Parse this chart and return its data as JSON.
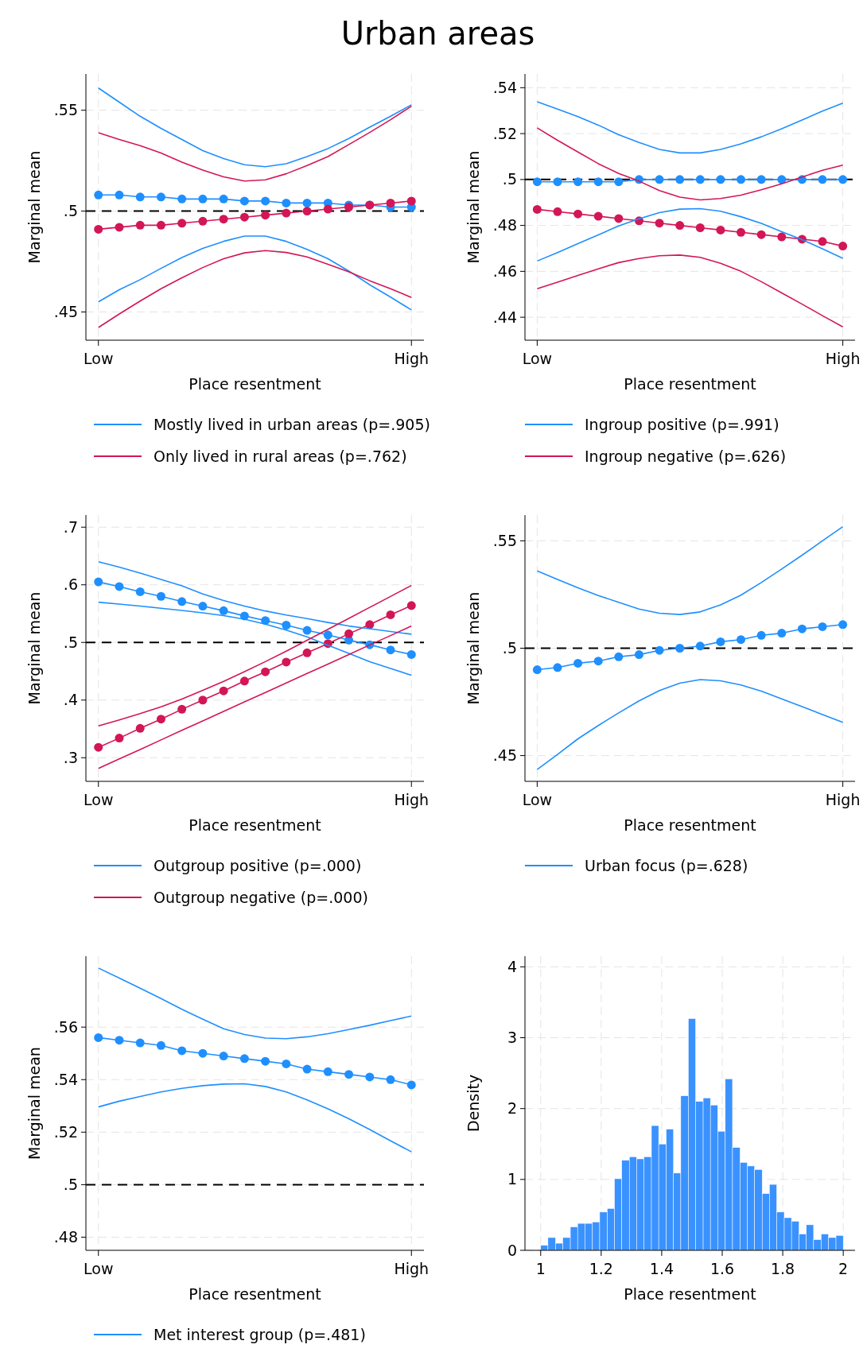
{
  "chart_data": [
    {
      "type": "line",
      "title": "Urban areas",
      "xlabel": "Place resentment",
      "ylabel": "Marginal mean",
      "categories": [
        "Low",
        null,
        null,
        null,
        null,
        null,
        null,
        null,
        null,
        null,
        null,
        null,
        null,
        null,
        null,
        "High"
      ],
      "ylim": [
        0.436,
        0.568
      ],
      "yticks": [
        {
          "value": 0.45,
          "label": ".45"
        },
        {
          "value": 0.5,
          "label": ".5"
        },
        {
          "value": 0.55,
          "label": ".55"
        }
      ],
      "grid": true,
      "legend": "bottom",
      "marker": "circle",
      "ref_lines": [
        {
          "axis": "y",
          "value": 0.5,
          "color": "#000000",
          "line_style": "dashed"
        }
      ],
      "series": [
        {
          "name": "Mostly lived in urban areas (p=.905)",
          "color": "#1e8fff",
          "values": [
            0.508,
            0.508,
            0.507,
            0.507,
            0.506,
            0.506,
            0.506,
            0.505,
            0.505,
            0.504,
            0.504,
            0.504,
            0.503,
            0.503,
            0.502,
            0.502
          ]
        },
        {
          "name": "Only lived in rural areas (p=.762)",
          "color": "#d31655",
          "values": [
            0.491,
            0.492,
            0.493,
            0.493,
            0.494,
            0.495,
            0.496,
            0.497,
            0.498,
            0.499,
            0.5,
            0.501,
            0.502,
            0.503,
            0.504,
            0.505
          ]
        },
        {
          "color": "#1e8fff",
          "marker": "none",
          "values": [
            0.455,
            0.461,
            0.466,
            0.4716,
            0.477,
            0.4815,
            0.485,
            0.4876,
            0.4876,
            0.485,
            0.481,
            0.4764,
            0.4703,
            0.4635,
            0.4574,
            0.451
          ]
        },
        {
          "color": "#1e8fff",
          "marker": "none",
          "values": [
            0.561,
            0.554,
            0.547,
            0.541,
            0.5355,
            0.53,
            0.526,
            0.523,
            0.522,
            0.5235,
            0.527,
            0.531,
            0.536,
            0.5416,
            0.547,
            0.5527
          ]
        },
        {
          "color": "#d31655",
          "marker": "none",
          "values": [
            0.4423,
            0.449,
            0.4554,
            0.4615,
            0.4669,
            0.472,
            0.4764,
            0.4793,
            0.4804,
            0.4795,
            0.4773,
            0.4736,
            0.4699,
            0.4655,
            0.4615,
            0.4572
          ]
        },
        {
          "color": "#d31655",
          "marker": "none",
          "values": [
            0.5388,
            0.5355,
            0.5324,
            0.5288,
            0.5243,
            0.5203,
            0.517,
            0.5149,
            0.5155,
            0.5185,
            0.5226,
            0.527,
            0.533,
            0.539,
            0.5453,
            0.552
          ]
        }
      ]
    },
    {
      "type": "line",
      "xlabel": "Place resentment",
      "ylabel": "Marginal mean",
      "categories": [
        "Low",
        null,
        null,
        null,
        null,
        null,
        null,
        null,
        null,
        null,
        null,
        null,
        null,
        null,
        null,
        "High"
      ],
      "ylim": [
        0.43,
        0.546
      ],
      "yticks": [
        {
          "value": 0.44,
          "label": ".44"
        },
        {
          "value": 0.46,
          "label": ".46"
        },
        {
          "value": 0.48,
          "label": ".48"
        },
        {
          "value": 0.5,
          "label": ".5"
        },
        {
          "value": 0.52,
          "label": ".52"
        },
        {
          "value": 0.54,
          "label": ".54"
        }
      ],
      "grid": true,
      "legend": "bottom",
      "marker": "circle",
      "ref_lines": [
        {
          "axis": "y",
          "value": 0.5,
          "color": "#000000",
          "line_style": "dashed"
        }
      ],
      "series": [
        {
          "name": "Ingroup positive (p=.991)",
          "color": "#1e8fff",
          "values": [
            0.499,
            0.499,
            0.499,
            0.499,
            0.499,
            0.5,
            0.5,
            0.5,
            0.5,
            0.5,
            0.5,
            0.5,
            0.5,
            0.5,
            0.5,
            0.5
          ]
        },
        {
          "name": "Ingroup negative (p=.626)",
          "color": "#d31655",
          "values": [
            0.487,
            0.486,
            0.485,
            0.484,
            0.483,
            0.482,
            0.481,
            0.48,
            0.479,
            0.478,
            0.477,
            0.476,
            0.475,
            0.474,
            0.473,
            0.471
          ]
        },
        {
          "color": "#1e8fff",
          "marker": "none",
          "values": [
            0.4645,
            0.4682,
            0.4721,
            0.4759,
            0.4798,
            0.4829,
            0.4856,
            0.4871,
            0.4873,
            0.4862,
            0.4838,
            0.4809,
            0.4773,
            0.4738,
            0.4698,
            0.4657
          ]
        },
        {
          "color": "#1e8fff",
          "marker": "none",
          "values": [
            0.5339,
            0.5307,
            0.5274,
            0.5237,
            0.5195,
            0.5161,
            0.5131,
            0.5116,
            0.5116,
            0.5131,
            0.5155,
            0.5186,
            0.5221,
            0.5259,
            0.5298,
            0.5333
          ]
        },
        {
          "color": "#d31655",
          "marker": "none",
          "values": [
            0.4524,
            0.4553,
            0.4582,
            0.4611,
            0.4638,
            0.4656,
            0.4668,
            0.4671,
            0.4661,
            0.4635,
            0.46,
            0.4555,
            0.4506,
            0.4457,
            0.4407,
            0.4358
          ]
        },
        {
          "color": "#d31655",
          "marker": "none",
          "values": [
            0.5225,
            0.5171,
            0.512,
            0.5069,
            0.5026,
            0.4993,
            0.4952,
            0.4923,
            0.4911,
            0.4917,
            0.4932,
            0.4955,
            0.4981,
            0.5011,
            0.504,
            0.5063
          ]
        }
      ]
    },
    {
      "type": "line",
      "xlabel": "Place resentment",
      "ylabel": "Marginal mean",
      "categories": [
        "Low",
        null,
        null,
        null,
        null,
        null,
        null,
        null,
        null,
        null,
        null,
        null,
        null,
        null,
        null,
        "High"
      ],
      "ylim": [
        0.259,
        0.721
      ],
      "yticks": [
        {
          "value": 0.3,
          "label": ".3"
        },
        {
          "value": 0.4,
          "label": ".4"
        },
        {
          "value": 0.5,
          "label": ".5"
        },
        {
          "value": 0.6,
          "label": ".6"
        },
        {
          "value": 0.7,
          "label": ".7"
        }
      ],
      "grid": true,
      "legend": "bottom",
      "marker": "circle",
      "ref_lines": [
        {
          "axis": "y",
          "value": 0.5,
          "color": "#000000",
          "line_style": "dashed"
        }
      ],
      "series": [
        {
          "name": "Outgroup positive (p=.000)",
          "color": "#1e8fff",
          "values": [
            0.605,
            0.597,
            0.588,
            0.58,
            0.571,
            0.563,
            0.555,
            0.546,
            0.538,
            0.53,
            0.521,
            0.513,
            0.504,
            0.496,
            0.487,
            0.479
          ]
        },
        {
          "name": "Outgroup negative (p=.000)",
          "color": "#d31655",
          "values": [
            0.318,
            0.334,
            0.351,
            0.367,
            0.384,
            0.4,
            0.416,
            0.433,
            0.449,
            0.466,
            0.482,
            0.498,
            0.515,
            0.531,
            0.548,
            0.564
          ]
        },
        {
          "color": "#1e8fff",
          "marker": "none",
          "values": [
            0.5698,
            0.5665,
            0.5632,
            0.5594,
            0.5556,
            0.5513,
            0.5466,
            0.5404,
            0.5318,
            0.5214,
            0.5095,
            0.4953,
            0.481,
            0.4667,
            0.4549,
            0.443
          ]
        },
        {
          "color": "#1e8fff",
          "marker": "none",
          "values": [
            0.64,
            0.6306,
            0.6202,
            0.6093,
            0.5983,
            0.5841,
            0.5727,
            0.5632,
            0.5546,
            0.5475,
            0.5413,
            0.5347,
            0.5285,
            0.5238,
            0.519,
            0.5143
          ]
        },
        {
          "color": "#d31655",
          "marker": "none",
          "values": [
            0.2815,
            0.2981,
            0.3143,
            0.3309,
            0.3475,
            0.3637,
            0.3803,
            0.3969,
            0.413,
            0.4297,
            0.4463,
            0.4625,
            0.4791,
            0.4957,
            0.5119,
            0.5285
          ]
        },
        {
          "color": "#d31655",
          "marker": "none",
          "values": [
            0.3551,
            0.3656,
            0.3765,
            0.3884,
            0.4017,
            0.4169,
            0.4325,
            0.4492,
            0.4667,
            0.4848,
            0.5038,
            0.5228,
            0.5418,
            0.5608,
            0.5798,
            0.5988
          ]
        }
      ]
    },
    {
      "type": "line",
      "xlabel": "Place resentment",
      "ylabel": "Marginal mean",
      "categories": [
        "Low",
        null,
        null,
        null,
        null,
        null,
        null,
        null,
        null,
        null,
        null,
        null,
        null,
        null,
        null,
        "High"
      ],
      "ylim": [
        0.438,
        0.562
      ],
      "yticks": [
        {
          "value": 0.45,
          "label": ".45"
        },
        {
          "value": 0.5,
          "label": ".5"
        },
        {
          "value": 0.55,
          "label": ".55"
        }
      ],
      "grid": true,
      "legend": "bottom",
      "marker": "circle",
      "ref_lines": [
        {
          "axis": "y",
          "value": 0.5,
          "color": "#000000",
          "line_style": "dashed"
        }
      ],
      "series": [
        {
          "name": "Urban focus (p=.628)",
          "color": "#1e8fff",
          "values": [
            0.49,
            0.491,
            0.493,
            0.494,
            0.496,
            0.497,
            0.499,
            0.5,
            0.501,
            0.503,
            0.504,
            0.506,
            0.507,
            0.509,
            0.51,
            0.511
          ]
        },
        {
          "color": "#1e8fff",
          "marker": "none",
          "values": [
            0.4435,
            0.4505,
            0.4578,
            0.464,
            0.4699,
            0.4755,
            0.4803,
            0.4837,
            0.4854,
            0.4848,
            0.4829,
            0.48,
            0.4764,
            0.4728,
            0.4691,
            0.4655
          ]
        },
        {
          "color": "#1e8fff",
          "marker": "none",
          "values": [
            0.536,
            0.532,
            0.5281,
            0.5245,
            0.5214,
            0.5182,
            0.5163,
            0.5157,
            0.5169,
            0.5202,
            0.5247,
            0.5306,
            0.5369,
            0.5433,
            0.55,
            0.5566
          ]
        }
      ]
    },
    {
      "type": "line",
      "xlabel": "Place resentment",
      "ylabel": "Marginal mean",
      "categories": [
        "Low",
        null,
        null,
        null,
        null,
        null,
        null,
        null,
        null,
        null,
        null,
        null,
        null,
        null,
        null,
        "High"
      ],
      "ylim": [
        0.475,
        0.587
      ],
      "yticks": [
        {
          "value": 0.48,
          "label": ".48"
        },
        {
          "value": 0.5,
          "label": ".5"
        },
        {
          "value": 0.52,
          "label": ".52"
        },
        {
          "value": 0.54,
          "label": ".54"
        },
        {
          "value": 0.56,
          "label": ".56"
        }
      ],
      "grid": true,
      "legend": "bottom",
      "marker": "circle",
      "ref_lines": [
        {
          "axis": "y",
          "value": 0.5,
          "color": "#000000",
          "line_style": "dashed"
        }
      ],
      "series": [
        {
          "name": "Met interest group (p=.481)",
          "color": "#1e8fff",
          "values": [
            0.556,
            0.555,
            0.554,
            0.553,
            0.551,
            0.55,
            0.549,
            0.548,
            0.547,
            0.546,
            0.544,
            0.543,
            0.542,
            0.541,
            0.54,
            0.538
          ]
        },
        {
          "color": "#1e8fff",
          "marker": "none",
          "values": [
            0.5296,
            0.5318,
            0.5336,
            0.5353,
            0.5367,
            0.5377,
            0.5383,
            0.5384,
            0.5374,
            0.5353,
            0.5323,
            0.5289,
            0.5251,
            0.521,
            0.5167,
            0.5125
          ]
        },
        {
          "color": "#1e8fff",
          "marker": "none",
          "values": [
            0.5825,
            0.5787,
            0.5748,
            0.5709,
            0.5668,
            0.563,
            0.5594,
            0.5572,
            0.5558,
            0.5556,
            0.5563,
            0.5575,
            0.5591,
            0.5607,
            0.5625,
            0.5642
          ]
        }
      ]
    },
    {
      "type": "histogram",
      "xlabel": "Place resentment",
      "ylabel": "Density",
      "color": "#3a92ff",
      "grid": true,
      "xlim": [
        0.948,
        2.039
      ],
      "ylim": [
        0,
        4.15
      ],
      "xticks": [
        1,
        1.2,
        1.4,
        1.6,
        1.8,
        2
      ],
      "yticks": [
        0,
        1,
        2,
        3,
        4
      ],
      "bins": [
        1,
        1.024,
        1.049,
        1.073,
        1.098,
        1.122,
        1.146,
        1.171,
        1.195,
        1.22,
        1.244,
        1.268,
        1.293,
        1.317,
        1.341,
        1.366,
        1.39,
        1.415,
        1.439,
        1.463,
        1.488,
        1.512,
        1.537,
        1.561,
        1.585,
        1.61,
        1.634,
        1.659,
        1.683,
        1.707,
        1.732,
        1.756,
        1.78,
        1.805,
        1.829,
        1.854,
        1.878,
        1.902,
        1.927,
        1.951,
        1.976,
        2
      ],
      "values": [
        0.07,
        0.18,
        0.1,
        0.18,
        0.33,
        0.38,
        0.38,
        0.4,
        0.54,
        0.59,
        1.01,
        1.27,
        1.32,
        1.29,
        1.32,
        1.76,
        1.5,
        1.71,
        1.09,
        2.18,
        3.27,
        2.1,
        2.15,
        2.05,
        1.68,
        2.42,
        1.45,
        1.24,
        1.19,
        1.14,
        0.8,
        0.93,
        0.54,
        0.46,
        0.41,
        0.23,
        0.36,
        0.15,
        0.23,
        0.18,
        0.21
      ]
    }
  ]
}
